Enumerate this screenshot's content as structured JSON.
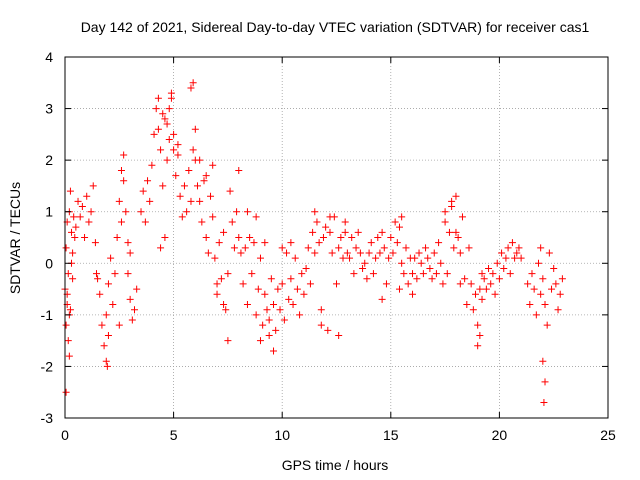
{
  "chart_data": {
    "type": "scatter",
    "title": "Day 142 of 2021, Sidereal Day-to-day VTEC variation (SDTVAR) for receiver cas1",
    "xlabel": "GPS time / hours",
    "ylabel": "SDTVAR / TECUs",
    "xlim": [
      0,
      25
    ],
    "ylim": [
      -3,
      4
    ],
    "xticks": [
      "0",
      "5",
      "10",
      "15",
      "20",
      "25"
    ],
    "yticks": [
      "-3",
      "-2",
      "-1",
      "0",
      "1",
      "2",
      "3",
      "4"
    ],
    "grid": true,
    "legend": "none",
    "marker": "+",
    "series": [
      {
        "name": "SDTVAR",
        "color": "#ff0000",
        "x": [
          0.0,
          0.05,
          0.1,
          0.15,
          0.2,
          0.25,
          0.3,
          0.35,
          0.4,
          0.5,
          0.6,
          0.7,
          0.8,
          0.9,
          1.0,
          1.1,
          1.2,
          1.3,
          1.4,
          1.45,
          0.05,
          0.1,
          0.15,
          0.2,
          0.25,
          0.35,
          0.45,
          0.1,
          0.3,
          0.2,
          0.05,
          1.5,
          1.6,
          1.7,
          1.8,
          1.9,
          2.0,
          2.1,
          2.2,
          2.3,
          2.4,
          2.5,
          2.6,
          2.7,
          2.8,
          2.9,
          3.0,
          3.1,
          3.2,
          3.3,
          1.9,
          2.0,
          1.95,
          2.6,
          2.7,
          2.5,
          2.9,
          3.0,
          3.5,
          3.6,
          3.7,
          3.8,
          3.9,
          4.0,
          4.1,
          4.2,
          4.3,
          4.4,
          4.5,
          4.6,
          4.7,
          4.8,
          4.9,
          5.0,
          5.1,
          5.2,
          5.3,
          5.4,
          5.5,
          5.6,
          5.7,
          5.8,
          5.9,
          6.0,
          4.3,
          4.5,
          4.7,
          4.8,
          4.9,
          5.0,
          5.2,
          5.8,
          5.9,
          6.0,
          4.6,
          4.4,
          6.1,
          6.2,
          6.3,
          6.4,
          6.5,
          6.6,
          6.7,
          6.8,
          6.9,
          7.0,
          7.1,
          7.2,
          7.3,
          7.4,
          7.5,
          7.6,
          7.7,
          7.8,
          7.9,
          8.0,
          6.2,
          6.5,
          6.8,
          7.3,
          7.5,
          8.0,
          7.0,
          8.1,
          8.2,
          8.3,
          8.4,
          8.5,
          8.6,
          8.7,
          8.8,
          8.9,
          9.0,
          9.1,
          9.2,
          9.3,
          9.4,
          9.5,
          9.6,
          9.7,
          9.8,
          9.9,
          10.0,
          10.1,
          10.2,
          10.3,
          10.4,
          10.5,
          10.6,
          10.7,
          10.8,
          10.9,
          11.0,
          8.4,
          8.8,
          9.2,
          9.6,
          10.0,
          10.4,
          9.0,
          9.4,
          11.1,
          11.2,
          11.3,
          11.4,
          11.5,
          11.6,
          11.7,
          11.8,
          11.9,
          12.0,
          12.1,
          12.2,
          12.3,
          12.4,
          12.5,
          12.6,
          12.7,
          12.8,
          12.9,
          13.0,
          11.5,
          11.8,
          12.2,
          12.6,
          12.9,
          13.1,
          13.2,
          13.3,
          13.4,
          13.5,
          13.6,
          13.7,
          13.8,
          13.9,
          14.0,
          14.1,
          14.2,
          14.3,
          14.4,
          14.5,
          14.6,
          14.7,
          14.8,
          14.9,
          15.0,
          15.1,
          15.2,
          15.3,
          15.4,
          15.5,
          15.6,
          15.7,
          15.8,
          15.9,
          16.0,
          14.6,
          15.4,
          15.5,
          16.0,
          16.1,
          16.2,
          16.3,
          16.4,
          16.5,
          16.6,
          16.7,
          16.8,
          16.9,
          17.0,
          17.1,
          17.2,
          17.3,
          17.4,
          17.5,
          17.6,
          17.7,
          17.8,
          17.9,
          18.0,
          18.1,
          18.2,
          18.3,
          18.4,
          18.5,
          18.6,
          18.7,
          18.8,
          18.9,
          17.5,
          17.8,
          18.0,
          18.2,
          19.0,
          19.1,
          19.2,
          19.3,
          19.4,
          19.5,
          19.6,
          19.7,
          19.8,
          19.9,
          20.0,
          20.1,
          20.2,
          20.3,
          20.4,
          20.5,
          20.6,
          20.7,
          20.8,
          20.9,
          21.0,
          19.0,
          19.1,
          19.2,
          21.3,
          21.4,
          21.5,
          21.6,
          21.7,
          21.8,
          21.9,
          22.0,
          22.1,
          22.2,
          22.3,
          22.4,
          22.5,
          22.6,
          22.7,
          22.8,
          22.9,
          22.0,
          22.1,
          22.05,
          21.9
        ],
        "y": [
          -0.5,
          0.3,
          0.8,
          -0.2,
          1.0,
          1.4,
          0.6,
          -0.3,
          0.9,
          0.7,
          1.2,
          0.9,
          1.1,
          0.5,
          1.3,
          0.8,
          1.0,
          1.5,
          0.4,
          -0.2,
          -1.2,
          -0.8,
          -1.5,
          -1.8,
          -0.9,
          0.2,
          0.5,
          -0.6,
          0.0,
          -1.0,
          -2.5,
          -0.3,
          -0.6,
          -1.2,
          -1.6,
          -1.9,
          -0.4,
          0.1,
          -0.8,
          -0.2,
          0.5,
          1.2,
          1.8,
          2.1,
          1.0,
          0.4,
          -0.7,
          -1.1,
          -0.9,
          -0.5,
          -1.0,
          -1.4,
          -2.0,
          0.8,
          1.6,
          -1.2,
          -0.2,
          0.2,
          1.0,
          1.4,
          0.8,
          1.6,
          1.2,
          1.9,
          2.5,
          3.0,
          2.6,
          2.2,
          1.5,
          2.8,
          2.0,
          2.4,
          3.2,
          2.5,
          1.7,
          2.1,
          1.3,
          0.9,
          1.5,
          1.0,
          1.8,
          1.2,
          2.2,
          2.6,
          3.2,
          2.9,
          2.7,
          3.0,
          3.3,
          2.2,
          2.3,
          3.4,
          3.5,
          2.0,
          0.5,
          0.3,
          1.5,
          1.2,
          0.8,
          1.6,
          0.5,
          0.2,
          1.3,
          0.9,
          0.1,
          -0.6,
          0.4,
          -0.3,
          0.6,
          -0.9,
          -0.2,
          1.4,
          0.8,
          0.3,
          1.0,
          0.5,
          2.0,
          1.7,
          1.9,
          -0.8,
          -1.5,
          1.8,
          -0.4,
          0.2,
          -0.4,
          0.3,
          -0.8,
          0.5,
          -0.2,
          0.4,
          -1.0,
          -0.5,
          0.1,
          -1.2,
          -0.6,
          -0.9,
          -1.1,
          -0.3,
          -0.8,
          -1.3,
          -0.5,
          -0.9,
          -0.4,
          -1.1,
          0.2,
          -0.7,
          -0.3,
          -0.8,
          0.1,
          -0.5,
          -1.0,
          -0.2,
          -0.6,
          1.0,
          0.9,
          0.4,
          -1.7,
          0.3,
          0.4,
          -1.5,
          -1.4,
          -0.1,
          0.3,
          -0.4,
          0.6,
          0.2,
          0.8,
          0.4,
          -0.9,
          0.5,
          0.7,
          -1.3,
          0.6,
          0.2,
          0.9,
          -0.4,
          0.3,
          0.5,
          0.1,
          0.6,
          0.2,
          1.0,
          -1.2,
          0.9,
          -1.4,
          0.8,
          0.1,
          0.5,
          -0.2,
          0.3,
          0.6,
          0.2,
          -0.1,
          0.0,
          -0.3,
          0.2,
          0.4,
          -0.2,
          0.1,
          0.5,
          0.2,
          0.6,
          0.3,
          -0.4,
          0.1,
          0.5,
          0.2,
          0.8,
          0.4,
          -0.5,
          0.0,
          -0.2,
          0.3,
          -0.4,
          0.1,
          -0.2,
          -0.7,
          0.7,
          0.9,
          -0.6,
          0.1,
          -0.3,
          0.2,
          0.0,
          -0.2,
          0.3,
          0.1,
          -0.1,
          -0.3,
          0.2,
          -0.2,
          0.4,
          0.0,
          -0.4,
          0.8,
          -0.2,
          0.6,
          1.1,
          0.3,
          1.3,
          0.5,
          0.2,
          0.9,
          -0.3,
          -0.8,
          0.3,
          -0.4,
          -0.9,
          -0.6,
          1.0,
          1.2,
          0.6,
          -0.4,
          -1.2,
          -0.5,
          -0.7,
          -0.3,
          -0.5,
          -0.1,
          -0.4,
          -0.2,
          -0.6,
          0.0,
          -0.3,
          0.2,
          -0.1,
          0.1,
          0.3,
          -0.2,
          0.4,
          0.1,
          0.2,
          0.3,
          0.1,
          -1.6,
          -1.4,
          -0.2,
          -0.4,
          -0.8,
          -0.2,
          -0.5,
          -1.0,
          0.0,
          -0.6,
          -0.3,
          -0.8,
          -1.2,
          0.2,
          -0.5,
          -0.1,
          -0.4,
          -0.9,
          -0.6,
          -0.3,
          -1.9,
          -2.3,
          -2.7,
          0.3
        ]
      }
    ]
  }
}
